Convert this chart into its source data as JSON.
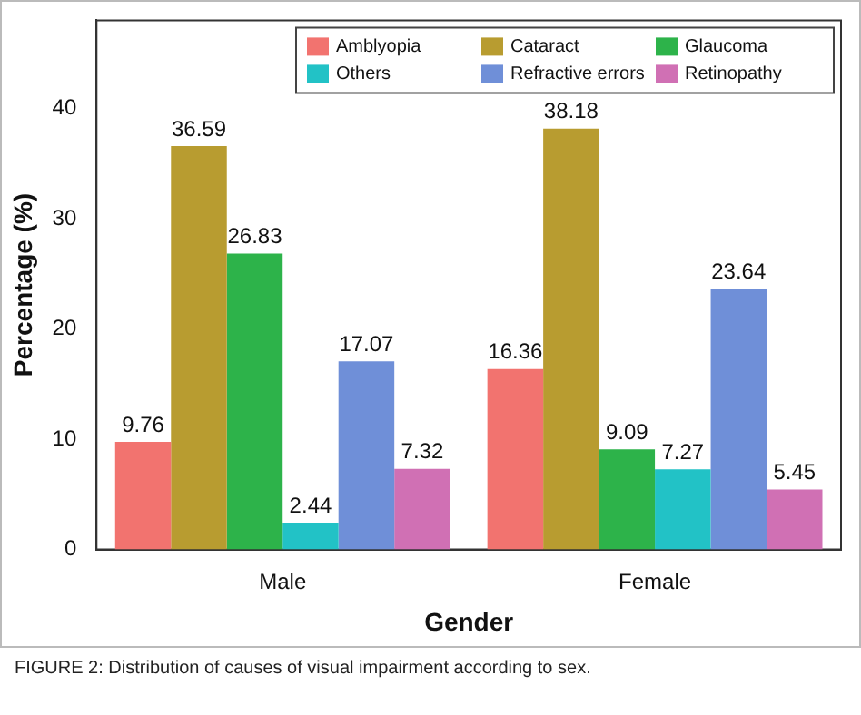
{
  "chart_data": {
    "type": "bar",
    "xlabel": "Gender",
    "ylabel": "Percentage (%)",
    "categories": [
      "Male",
      "Female"
    ],
    "series": [
      {
        "name": "Amblyopia",
        "color": "#f2736f",
        "values": [
          9.76,
          16.36
        ]
      },
      {
        "name": "Cataract",
        "color": "#b89c30",
        "values": [
          36.59,
          38.18
        ]
      },
      {
        "name": "Glaucoma",
        "color": "#2db34a",
        "values": [
          26.83,
          9.09
        ]
      },
      {
        "name": "Others",
        "color": "#22c2c6",
        "values": [
          2.44,
          7.27
        ]
      },
      {
        "name": "Refractive errors",
        "color": "#6f8fd8",
        "values": [
          17.07,
          23.64
        ]
      },
      {
        "name": "Retinopathy",
        "color": "#d070b4",
        "values": [
          7.32,
          5.45
        ]
      }
    ],
    "ylim": [
      0,
      48
    ],
    "yticks": [
      0,
      10,
      20,
      30,
      40
    ],
    "grid": false,
    "legend": "top right",
    "data_labels": true,
    "annotations": [
      "FIGURE 2: Distribution of causes of visual impairment according to sex."
    ]
  }
}
